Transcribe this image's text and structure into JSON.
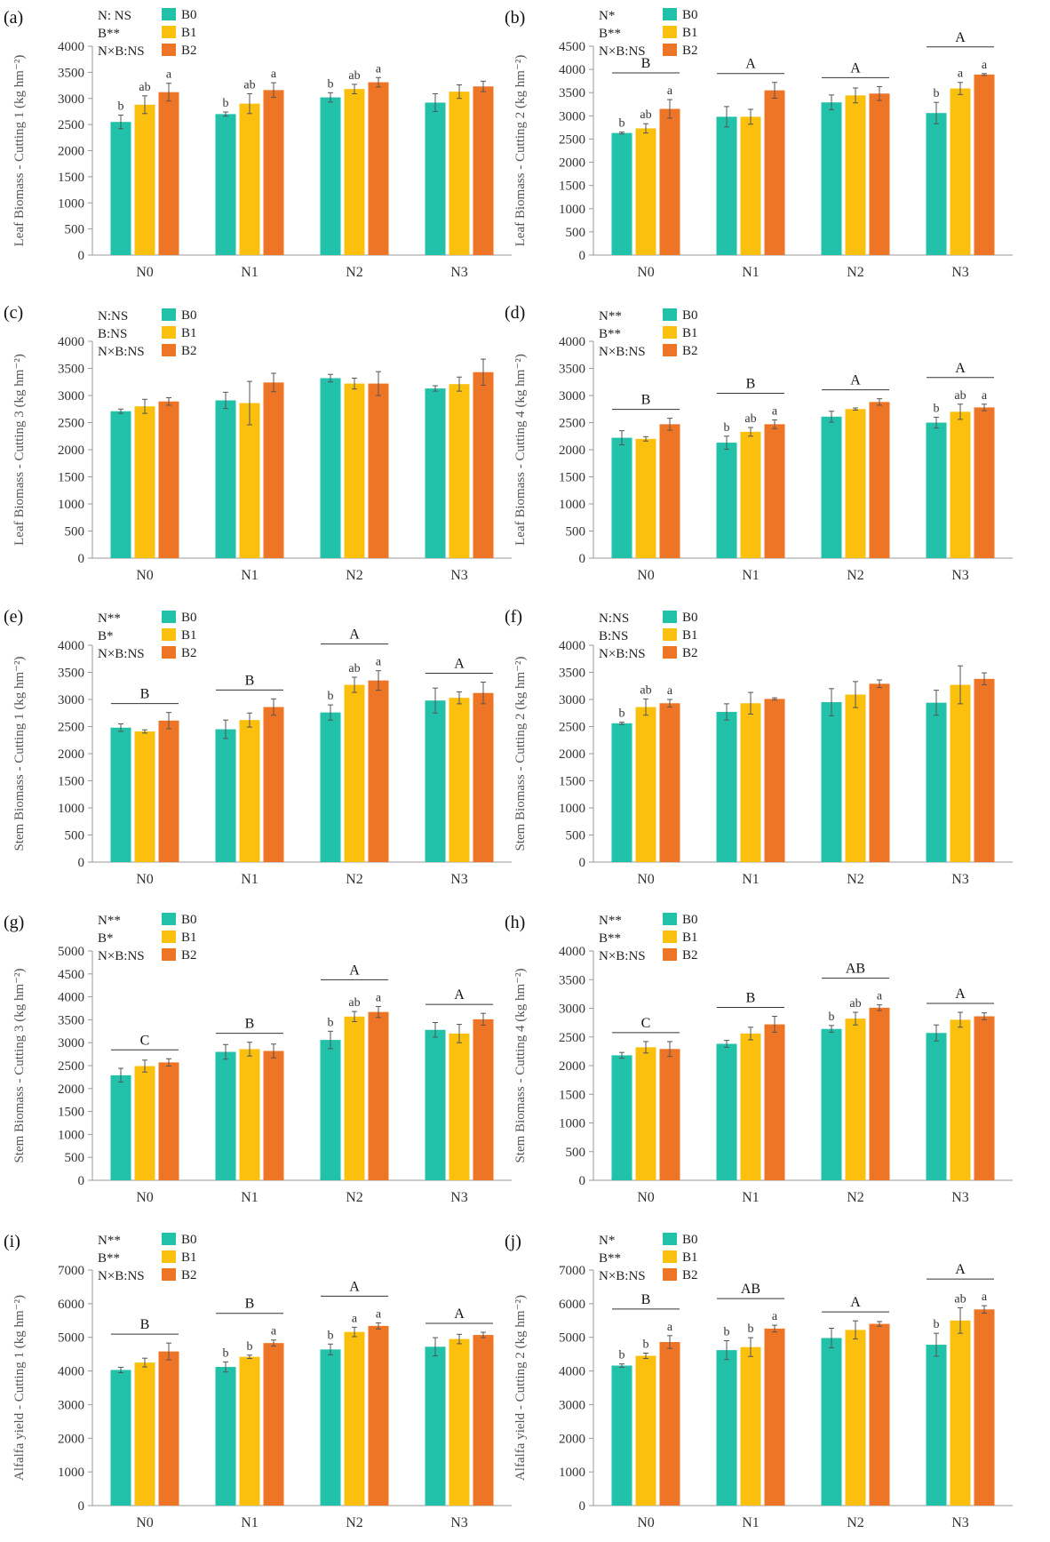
{
  "figure": {
    "colors": {
      "B0": "#22c1aa",
      "B1": "#fbbf0e",
      "B2": "#ee7526",
      "axis": "#999999",
      "text": "#333333",
      "errbar": "#555555"
    },
    "legend_labels": [
      "B0",
      "B1",
      "B2"
    ],
    "categories": [
      "N0",
      "N1",
      "N2",
      "N3"
    ]
  },
  "chart_data": [
    {
      "type": "bar",
      "panel_label": "(a)",
      "ylabel": "Leaf Biomass - Cutting 1 (kg hm⁻²)",
      "ylim": [
        0,
        4000
      ],
      "ytick_step": 500,
      "categories": [
        "N0",
        "N1",
        "N2",
        "N3"
      ],
      "series": [
        {
          "name": "B0",
          "values": [
            2550,
            2700,
            3020,
            2920
          ],
          "errors": [
            130,
            40,
            90,
            170
          ]
        },
        {
          "name": "B1",
          "values": [
            2880,
            2900,
            3180,
            3130
          ],
          "errors": [
            170,
            190,
            90,
            130
          ]
        },
        {
          "name": "B2",
          "values": [
            3120,
            3160,
            3310,
            3230
          ],
          "errors": [
            170,
            140,
            90,
            100
          ]
        }
      ],
      "significance": [
        "N: NS",
        "B**",
        "N×B:NS"
      ],
      "letters": [
        [
          "b",
          "ab",
          "a"
        ],
        [
          "b",
          "ab",
          "a"
        ],
        [
          "b",
          "ab",
          "a"
        ],
        [
          "",
          "",
          ""
        ]
      ],
      "group_letters": [
        "",
        "",
        "",
        ""
      ]
    },
    {
      "type": "bar",
      "panel_label": "(b)",
      "ylabel": "Leaf Biomass - Cutting 2 (kg hm⁻²)",
      "ylim": [
        0,
        4500
      ],
      "ytick_step": 500,
      "categories": [
        "N0",
        "N1",
        "N2",
        "N3"
      ],
      "series": [
        {
          "name": "B0",
          "values": [
            2630,
            2980,
            3290,
            3060
          ],
          "errors": [
            20,
            220,
            160,
            230
          ]
        },
        {
          "name": "B1",
          "values": [
            2730,
            2980,
            3440,
            3590
          ],
          "errors": [
            100,
            160,
            160,
            130
          ]
        },
        {
          "name": "B2",
          "values": [
            3150,
            3550,
            3480,
            3890
          ],
          "errors": [
            200,
            170,
            150,
            20
          ]
        }
      ],
      "significance": [
        "N*",
        "B**",
        "N×B:NS"
      ],
      "letters": [
        [
          "b",
          "ab",
          "a"
        ],
        [
          "",
          "",
          ""
        ],
        [
          "",
          "",
          ""
        ],
        [
          "b",
          "a",
          "a"
        ]
      ],
      "group_letters": [
        "B",
        "A",
        "A",
        "A"
      ]
    },
    {
      "type": "bar",
      "panel_label": "(c)",
      "ylabel": "Leaf Biomass - Cutting 3 (kg hm⁻²)",
      "ylim": [
        0,
        4000
      ],
      "ytick_step": 500,
      "categories": [
        "N0",
        "N1",
        "N2",
        "N3"
      ],
      "series": [
        {
          "name": "B0",
          "values": [
            2710,
            2910,
            3320,
            3130
          ],
          "errors": [
            40,
            150,
            70,
            50
          ]
        },
        {
          "name": "B1",
          "values": [
            2800,
            2860,
            3220,
            3210
          ],
          "errors": [
            130,
            400,
            100,
            130
          ]
        },
        {
          "name": "B2",
          "values": [
            2890,
            3240,
            3220,
            3430
          ],
          "errors": [
            70,
            170,
            220,
            240
          ]
        }
      ],
      "significance": [
        "N:NS",
        "B:NS",
        "N×B:NS"
      ],
      "letters": [
        [
          "",
          "",
          ""
        ],
        [
          "",
          "",
          ""
        ],
        [
          "",
          "",
          ""
        ],
        [
          "",
          "",
          ""
        ]
      ],
      "group_letters": [
        "",
        "",
        "",
        ""
      ]
    },
    {
      "type": "bar",
      "panel_label": "(d)",
      "ylabel": "Leaf Biomass - Cutting 4 (kg hm⁻²)",
      "ylim": [
        0,
        4000
      ],
      "ytick_step": 500,
      "categories": [
        "N0",
        "N1",
        "N2",
        "N3"
      ],
      "series": [
        {
          "name": "B0",
          "values": [
            2220,
            2130,
            2610,
            2500
          ],
          "errors": [
            130,
            120,
            100,
            100
          ]
        },
        {
          "name": "B1",
          "values": [
            2200,
            2330,
            2750,
            2700
          ],
          "errors": [
            40,
            80,
            20,
            140
          ]
        },
        {
          "name": "B2",
          "values": [
            2470,
            2470,
            2880,
            2780
          ],
          "errors": [
            110,
            80,
            60,
            60
          ]
        }
      ],
      "significance": [
        "N**",
        "B**",
        "N×B:NS"
      ],
      "letters": [
        [
          "",
          "",
          ""
        ],
        [
          "b",
          "ab",
          "a"
        ],
        [
          "",
          "",
          ""
        ],
        [
          "b",
          "ab",
          "a"
        ]
      ],
      "group_letters": [
        "B",
        "B",
        "A",
        "A"
      ]
    },
    {
      "type": "bar",
      "panel_label": "(e)",
      "ylabel": "Stem Biomass - Cutting 1 (kg hm⁻²)",
      "ylim": [
        0,
        4000
      ],
      "ytick_step": 500,
      "categories": [
        "N0",
        "N1",
        "N2",
        "N3"
      ],
      "series": [
        {
          "name": "B0",
          "values": [
            2480,
            2450,
            2760,
            2980
          ],
          "errors": [
            70,
            170,
            140,
            230
          ]
        },
        {
          "name": "B1",
          "values": [
            2410,
            2620,
            3270,
            3030
          ],
          "errors": [
            30,
            130,
            140,
            110
          ]
        },
        {
          "name": "B2",
          "values": [
            2610,
            2860,
            3350,
            3120
          ],
          "errors": [
            150,
            150,
            180,
            200
          ]
        }
      ],
      "significance": [
        "N**",
        "B*",
        "N×B:NS"
      ],
      "letters": [
        [
          "",
          "",
          ""
        ],
        [
          "",
          "",
          ""
        ],
        [
          "b",
          "ab",
          "a"
        ],
        [
          "",
          "",
          ""
        ]
      ],
      "group_letters": [
        "B",
        "B",
        "A",
        "A"
      ]
    },
    {
      "type": "bar",
      "panel_label": "(f)",
      "ylabel": "Stem Biomass - Cutting 2 (kg hm⁻²)",
      "ylim": [
        0,
        4000
      ],
      "ytick_step": 500,
      "categories": [
        "N0",
        "N1",
        "N2",
        "N3"
      ],
      "series": [
        {
          "name": "B0",
          "values": [
            2560,
            2770,
            2950,
            2940
          ],
          "errors": [
            20,
            150,
            250,
            230
          ]
        },
        {
          "name": "B1",
          "values": [
            2860,
            2930,
            3090,
            3270
          ],
          "errors": [
            150,
            200,
            240,
            350
          ]
        },
        {
          "name": "B2",
          "values": [
            2930,
            3010,
            3290,
            3380
          ],
          "errors": [
            70,
            20,
            70,
            110
          ]
        }
      ],
      "significance": [
        "N:NS",
        "B:NS",
        "N×B:NS"
      ],
      "letters": [
        [
          "b",
          "ab",
          "a"
        ],
        [
          "",
          "",
          ""
        ],
        [
          "",
          "",
          ""
        ],
        [
          "",
          "",
          ""
        ]
      ],
      "group_letters": [
        "",
        "",
        "",
        ""
      ]
    },
    {
      "type": "bar",
      "panel_label": "(g)",
      "ylabel": "Stem Biomass - Cutting 3 (kg hm⁻²)",
      "ylim": [
        0,
        5000
      ],
      "ytick_step": 500,
      "categories": [
        "N0",
        "N1",
        "N2",
        "N3"
      ],
      "series": [
        {
          "name": "B0",
          "values": [
            2290,
            2800,
            3060,
            3280
          ],
          "errors": [
            150,
            160,
            190,
            160
          ]
        },
        {
          "name": "B1",
          "values": [
            2490,
            2860,
            3570,
            3200
          ],
          "errors": [
            130,
            150,
            110,
            200
          ]
        },
        {
          "name": "B2",
          "values": [
            2570,
            2820,
            3670,
            3510
          ],
          "errors": [
            80,
            150,
            120,
            130
          ]
        }
      ],
      "significance": [
        "N**",
        "B*",
        "N×B:NS"
      ],
      "letters": [
        [
          "",
          "",
          ""
        ],
        [
          "",
          "",
          ""
        ],
        [
          "b",
          "ab",
          "a"
        ],
        [
          "",
          "",
          ""
        ]
      ],
      "group_letters": [
        "C",
        "B",
        "A",
        "A"
      ]
    },
    {
      "type": "bar",
      "panel_label": "(h)",
      "ylabel": "Stem Biomass - Cutting 4 (kg hm⁻²)",
      "ylim": [
        0,
        4000
      ],
      "ytick_step": 500,
      "categories": [
        "N0",
        "N1",
        "N2",
        "N3"
      ],
      "series": [
        {
          "name": "B0",
          "values": [
            2180,
            2380,
            2640,
            2570
          ],
          "errors": [
            50,
            60,
            60,
            140
          ]
        },
        {
          "name": "B1",
          "values": [
            2320,
            2560,
            2820,
            2800
          ],
          "errors": [
            100,
            110,
            110,
            130
          ]
        },
        {
          "name": "B2",
          "values": [
            2290,
            2720,
            3010,
            2860
          ],
          "errors": [
            130,
            140,
            50,
            60
          ]
        }
      ],
      "significance": [
        "N**",
        "B**",
        "N×B:NS"
      ],
      "letters": [
        [
          "",
          "",
          ""
        ],
        [
          "",
          "",
          ""
        ],
        [
          "b",
          "ab",
          "a"
        ],
        [
          "",
          "",
          ""
        ]
      ],
      "group_letters": [
        "C",
        "B",
        "AB",
        "A"
      ]
    },
    {
      "type": "bar",
      "panel_label": "(i)",
      "ylabel": "Alfalfa yield - Cutting 1 (kg hm⁻²)",
      "ylim": [
        0,
        7000
      ],
      "ytick_step": 1000,
      "categories": [
        "N0",
        "N1",
        "N2",
        "N3"
      ],
      "series": [
        {
          "name": "B0",
          "values": [
            4030,
            4120,
            4640,
            4720
          ],
          "errors": [
            80,
            150,
            160,
            270
          ]
        },
        {
          "name": "B1",
          "values": [
            4250,
            4420,
            5160,
            4950
          ],
          "errors": [
            130,
            50,
            140,
            140
          ]
        },
        {
          "name": "B2",
          "values": [
            4580,
            4830,
            5340,
            5070
          ],
          "errors": [
            250,
            90,
            90,
            80
          ]
        }
      ],
      "significance": [
        "N**",
        "B**",
        "N×B:NS"
      ],
      "letters": [
        [
          "",
          "",
          ""
        ],
        [
          "b",
          "b",
          "a"
        ],
        [
          "b",
          "a",
          "a"
        ],
        [
          "",
          "",
          ""
        ]
      ],
      "group_letters": [
        "B",
        "B",
        "A",
        "A"
      ]
    },
    {
      "type": "bar",
      "panel_label": "(j)",
      "ylabel": "Alfalfa yield - Cutting 2 (kg hm⁻²)",
      "ylim": [
        0,
        7000
      ],
      "ytick_step": 1000,
      "categories": [
        "N0",
        "N1",
        "N2",
        "N3"
      ],
      "series": [
        {
          "name": "B0",
          "values": [
            4160,
            4620,
            4980,
            4780
          ],
          "errors": [
            50,
            280,
            290,
            340
          ]
        },
        {
          "name": "B1",
          "values": [
            4450,
            4710,
            5220,
            5500
          ],
          "errors": [
            80,
            280,
            270,
            380
          ]
        },
        {
          "name": "B2",
          "values": [
            4860,
            5260,
            5400,
            5830
          ],
          "errors": [
            190,
            100,
            70,
            110
          ]
        }
      ],
      "significance": [
        "N*",
        "B**",
        "N×B:NS"
      ],
      "letters": [
        [
          "b",
          "b",
          "a"
        ],
        [
          "b",
          "b",
          "a"
        ],
        [
          "",
          "",
          ""
        ],
        [
          "b",
          "ab",
          "a"
        ]
      ],
      "group_letters": [
        "B",
        "AB",
        "A",
        "A"
      ]
    }
  ]
}
